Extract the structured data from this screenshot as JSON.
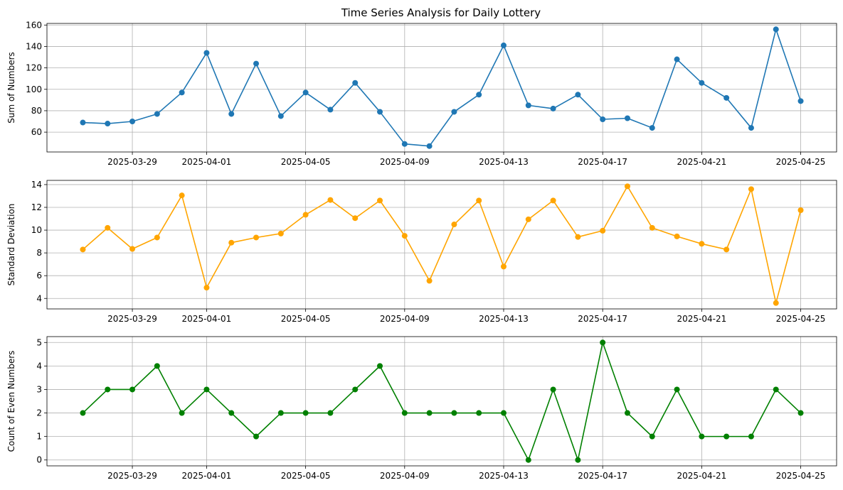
{
  "chart_data": [
    {
      "type": "line",
      "title": "Time Series Analysis for Daily Lottery",
      "xlabel": "",
      "ylabel": "Sum of Numbers",
      "x": [
        "2025-03-27",
        "2025-03-28",
        "2025-03-29",
        "2025-03-30",
        "2025-03-31",
        "2025-04-01",
        "2025-04-02",
        "2025-04-03",
        "2025-04-04",
        "2025-04-05",
        "2025-04-06",
        "2025-04-07",
        "2025-04-08",
        "2025-04-09",
        "2025-04-10",
        "2025-04-11",
        "2025-04-12",
        "2025-04-13",
        "2025-04-14",
        "2025-04-15",
        "2025-04-16",
        "2025-04-17",
        "2025-04-18",
        "2025-04-19",
        "2025-04-20",
        "2025-04-21",
        "2025-04-22",
        "2025-04-23",
        "2025-04-24",
        "2025-04-25"
      ],
      "series": [
        {
          "color": "#1f77b4",
          "values": [
            69,
            68,
            70,
            77,
            97,
            134,
            77,
            124,
            75,
            97,
            81,
            106,
            79,
            49,
            47,
            79,
            95,
            141,
            85,
            82,
            95,
            72,
            73,
            64,
            128,
            106,
            92,
            64,
            156,
            89
          ]
        }
      ],
      "xticks": [
        "2025-03-29",
        "2025-04-01",
        "2025-04-05",
        "2025-04-09",
        "2025-04-13",
        "2025-04-17",
        "2025-04-21",
        "2025-04-25"
      ],
      "yticks": [
        60,
        80,
        100,
        120,
        140,
        160
      ],
      "ylim": [
        41.5,
        161.5
      ],
      "grid": true
    },
    {
      "type": "line",
      "title": "",
      "xlabel": "",
      "ylabel": "Standard Deviation",
      "x": [
        "2025-03-27",
        "2025-03-28",
        "2025-03-29",
        "2025-03-30",
        "2025-03-31",
        "2025-04-01",
        "2025-04-02",
        "2025-04-03",
        "2025-04-04",
        "2025-04-05",
        "2025-04-06",
        "2025-04-07",
        "2025-04-08",
        "2025-04-09",
        "2025-04-10",
        "2025-04-11",
        "2025-04-12",
        "2025-04-13",
        "2025-04-14",
        "2025-04-15",
        "2025-04-16",
        "2025-04-17",
        "2025-04-18",
        "2025-04-19",
        "2025-04-20",
        "2025-04-21",
        "2025-04-22",
        "2025-04-23",
        "2025-04-24",
        "2025-04-25"
      ],
      "series": [
        {
          "color": "#ffa500",
          "values": [
            8.3,
            10.2,
            8.35,
            9.35,
            13.05,
            4.95,
            8.9,
            9.35,
            9.7,
            11.35,
            12.65,
            11.05,
            12.6,
            9.5,
            5.55,
            10.5,
            12.6,
            6.8,
            10.95,
            12.6,
            9.4,
            9.95,
            13.85,
            10.2,
            9.45,
            8.8,
            8.3,
            13.6,
            3.6,
            11.75
          ]
        }
      ],
      "xticks": [
        "2025-03-29",
        "2025-04-01",
        "2025-04-05",
        "2025-04-09",
        "2025-04-13",
        "2025-04-17",
        "2025-04-21",
        "2025-04-25"
      ],
      "yticks": [
        4,
        6,
        8,
        10,
        12,
        14
      ],
      "ylim": [
        3.08,
        14.37
      ],
      "grid": true
    },
    {
      "type": "line",
      "title": "",
      "xlabel": "",
      "ylabel": "Count of Even Numbers",
      "x": [
        "2025-03-27",
        "2025-03-28",
        "2025-03-29",
        "2025-03-30",
        "2025-03-31",
        "2025-04-01",
        "2025-04-02",
        "2025-04-03",
        "2025-04-04",
        "2025-04-05",
        "2025-04-06",
        "2025-04-07",
        "2025-04-08",
        "2025-04-09",
        "2025-04-10",
        "2025-04-11",
        "2025-04-12",
        "2025-04-13",
        "2025-04-14",
        "2025-04-15",
        "2025-04-16",
        "2025-04-17",
        "2025-04-18",
        "2025-04-19",
        "2025-04-20",
        "2025-04-21",
        "2025-04-22",
        "2025-04-23",
        "2025-04-24",
        "2025-04-25"
      ],
      "series": [
        {
          "color": "#008000",
          "values": [
            2,
            3,
            3,
            4,
            2,
            3,
            2,
            1,
            2,
            2,
            2,
            3,
            4,
            2,
            2,
            2,
            2,
            2,
            0,
            3,
            0,
            5,
            2,
            1,
            3,
            1,
            1,
            1,
            3,
            2
          ]
        }
      ],
      "xticks": [
        "2025-03-29",
        "2025-04-01",
        "2025-04-05",
        "2025-04-09",
        "2025-04-13",
        "2025-04-17",
        "2025-04-21",
        "2025-04-25"
      ],
      "yticks": [
        0,
        1,
        2,
        3,
        4,
        5
      ],
      "ylim": [
        -0.25,
        5.25
      ],
      "grid": true
    }
  ]
}
